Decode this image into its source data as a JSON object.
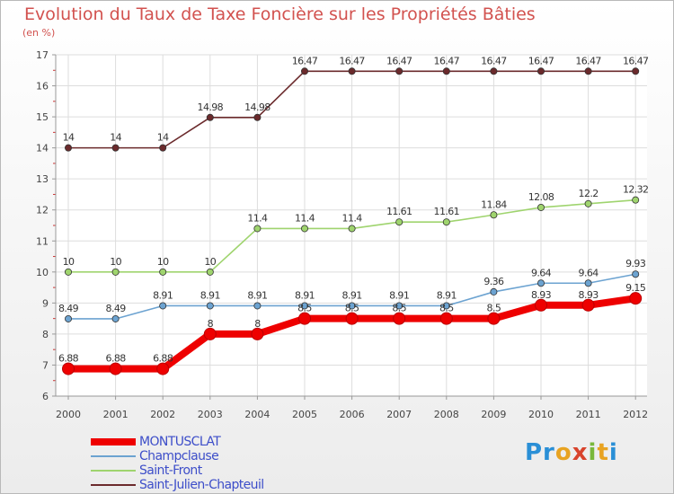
{
  "title": "Evolution du Taux de Taxe Foncière sur les Propriétés Bâties",
  "subtitle": "(en %)",
  "logo_text": "Proxiti",
  "chart_data": {
    "type": "line",
    "title": "Evolution du Taux de Taxe Foncière sur les Propriétés Bâties",
    "ylabel": "(en %)",
    "xlabel": "",
    "ylim": [
      6,
      17
    ],
    "yticks": [
      "6",
      "7",
      "8",
      "9",
      "10",
      "11",
      "12",
      "13",
      "14",
      "15",
      "16",
      "17"
    ],
    "categories": [
      "2000",
      "2001",
      "2002",
      "2003",
      "2004",
      "2005",
      "2006",
      "2007",
      "2008",
      "2009",
      "2010",
      "2011",
      "2012"
    ],
    "series": [
      {
        "name": "Saint-Julien-Chapteuil",
        "color": "#6b2a2c",
        "values": [
          14,
          14,
          14,
          14.98,
          14.98,
          16.47,
          16.47,
          16.47,
          16.47,
          16.47,
          16.47,
          16.47,
          16.47
        ],
        "labels": [
          "14",
          "14",
          "14",
          "14.98",
          "14.98",
          "16.47",
          "16.47",
          "16.47",
          "16.47",
          "16.47",
          "16.47",
          "16.47",
          "16.47"
        ]
      },
      {
        "name": "Saint-Front",
        "color": "#9fd46e",
        "values": [
          10,
          10,
          10,
          10,
          11.4,
          11.4,
          11.4,
          11.61,
          11.61,
          11.84,
          12.08,
          12.2,
          12.32
        ],
        "labels": [
          "10",
          "10",
          "10",
          "10",
          "11.4",
          "11.4",
          "11.4",
          "11.61",
          "11.61",
          "11.84",
          "12.08",
          "12.2",
          "12.32"
        ]
      },
      {
        "name": "Champclause",
        "color": "#6ca3d1",
        "values": [
          8.49,
          8.49,
          8.91,
          8.91,
          8.91,
          8.91,
          8.91,
          8.91,
          8.91,
          9.36,
          9.64,
          9.64,
          9.93
        ],
        "labels": [
          "8.49",
          "8.49",
          "8.91",
          "8.91",
          "8.91",
          "8.91",
          "8.91",
          "8.91",
          "8.91",
          "9.36",
          "9.64",
          "9.64",
          "9.93"
        ]
      },
      {
        "name": "MONTUSCLAT",
        "color": "#ee0000",
        "values": [
          6.88,
          6.88,
          6.88,
          8,
          8,
          8.5,
          8.5,
          8.5,
          8.5,
          8.5,
          8.93,
          8.93,
          9.15
        ],
        "labels": [
          "6.88",
          "6.88",
          "6.88",
          "8",
          "8",
          "8.5",
          "8.5",
          "8.5",
          "8.5",
          "8.5",
          "8.93",
          "8.93",
          "9.15"
        ]
      }
    ],
    "legend": [
      "MONTUSCLAT",
      "Champclause",
      "Saint-Front",
      "Saint-Julien-Chapteuil"
    ],
    "legend_position": "bottom-left"
  }
}
